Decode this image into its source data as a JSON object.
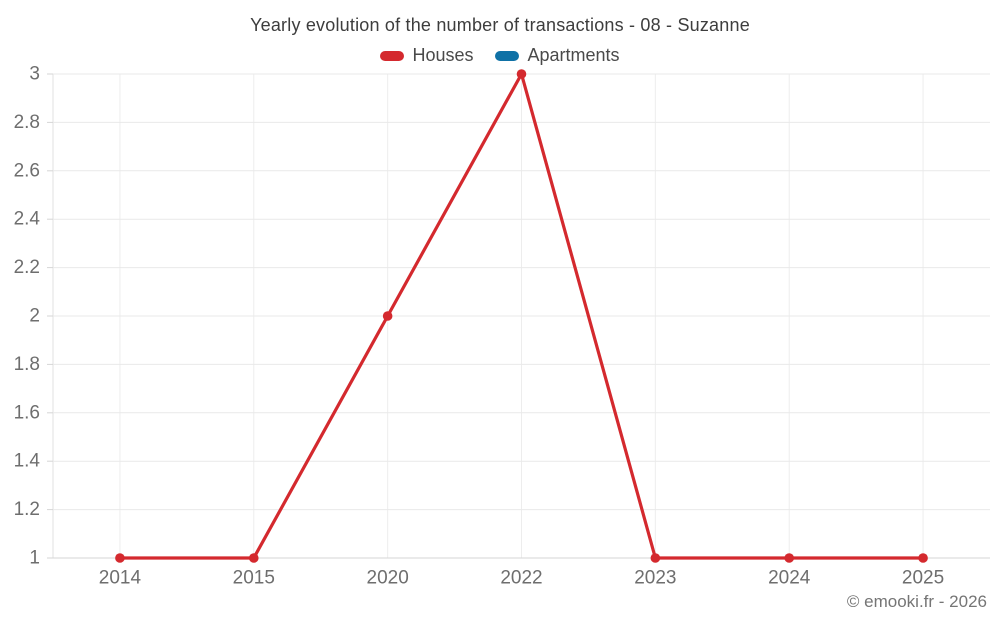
{
  "header": {
    "title": "Yearly evolution of the number of transactions - 08 - Suzanne"
  },
  "legend": {
    "items": [
      {
        "label": "Houses",
        "color": "#d4292e"
      },
      {
        "label": "Apartments",
        "color": "#0f71a6"
      }
    ]
  },
  "footer": {
    "copyright": "© emooki.fr - 2026"
  },
  "colors": {
    "grid_horizontal": "#e9e9e9",
    "grid_vertical": "#ededed",
    "axis_line": "#d6d6d6",
    "left_axis_line": "#e0e0e0",
    "tick_label": "#6e6e6e"
  },
  "chart_data": {
    "type": "line",
    "title": "Yearly evolution of the number of transactions - 08 - Suzanne",
    "categories": [
      "2014",
      "2015",
      "2020",
      "2022",
      "2023",
      "2024",
      "2025"
    ],
    "series": [
      {
        "name": "Houses",
        "color": "#d4292e",
        "values": [
          1,
          1,
          2,
          3,
          1,
          1,
          1
        ]
      },
      {
        "name": "Apartments",
        "color": "#0f71a6",
        "values": []
      }
    ],
    "xlabel": "",
    "ylabel": "",
    "ylim": [
      1,
      3
    ],
    "ytick_step": 0.2,
    "grid": true,
    "legend_position": "top",
    "marker": "circle"
  }
}
